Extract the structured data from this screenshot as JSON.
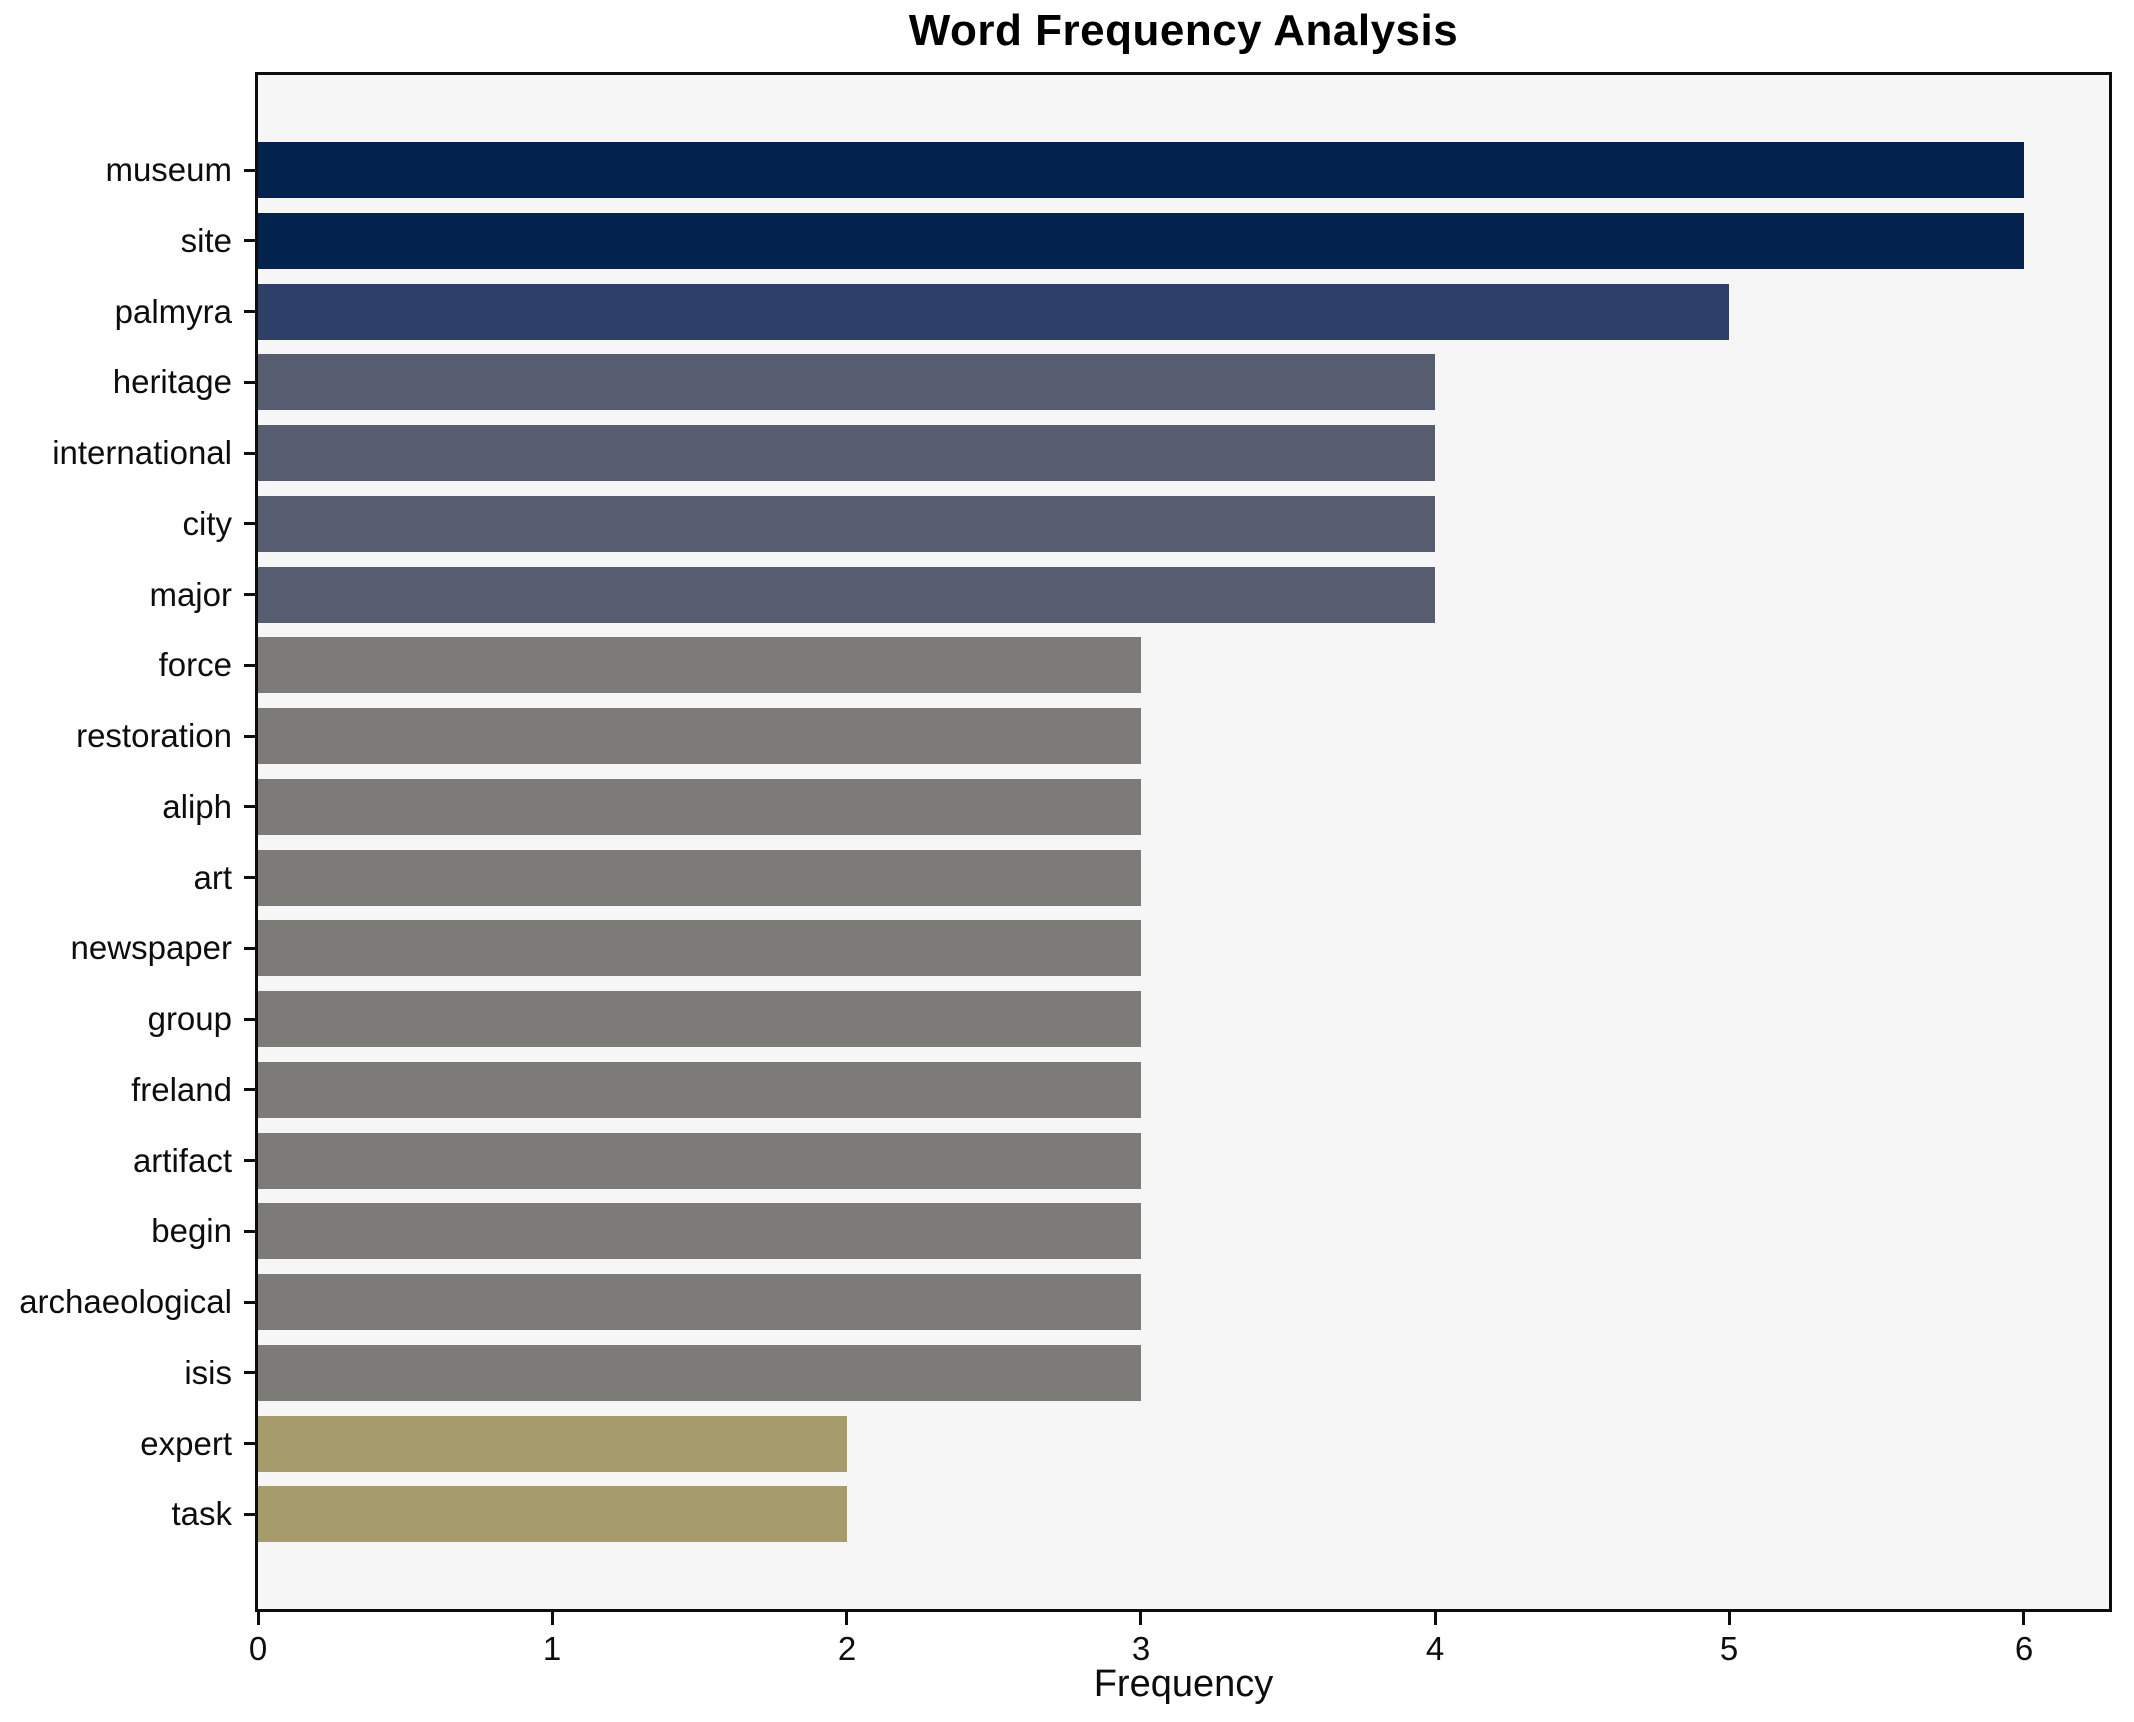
{
  "chart_data": {
    "type": "bar",
    "orientation": "horizontal",
    "title": "Word Frequency Analysis",
    "xlabel": "Frequency",
    "ylabel": "",
    "categories": [
      "museum",
      "site",
      "palmyra",
      "heritage",
      "international",
      "city",
      "major",
      "force",
      "restoration",
      "aliph",
      "art",
      "newspaper",
      "group",
      "freland",
      "artifact",
      "begin",
      "archaeological",
      "isis",
      "expert",
      "task"
    ],
    "values": [
      6,
      6,
      5,
      4,
      4,
      4,
      4,
      3,
      3,
      3,
      3,
      3,
      3,
      3,
      3,
      3,
      3,
      3,
      2,
      2
    ],
    "bar_colors": [
      "#03234e",
      "#03234e",
      "#2e4069",
      "#565d71",
      "#565d71",
      "#565d71",
      "#565d71",
      "#7c7b77",
      "#7c7b77",
      "#7c7b77",
      "#7c7b77",
      "#7c7b77",
      "#7c7b77",
      "#7c7b77",
      "#7c7b77",
      "#7c7b77",
      "#7c7b77",
      "#7c7b77",
      "#a69b6a",
      "#a69b6a"
    ],
    "xticks": [
      0,
      1,
      2,
      3,
      4,
      5,
      6
    ],
    "xlim": [
      0,
      6.29
    ],
    "grid": false,
    "legend_position": "none",
    "plot_background": "#f6f6f7",
    "spine_color": "#0d0d0d",
    "colormap_note": "cividis-like gradient mapped by value (high=dark navy, low=khaki)"
  }
}
